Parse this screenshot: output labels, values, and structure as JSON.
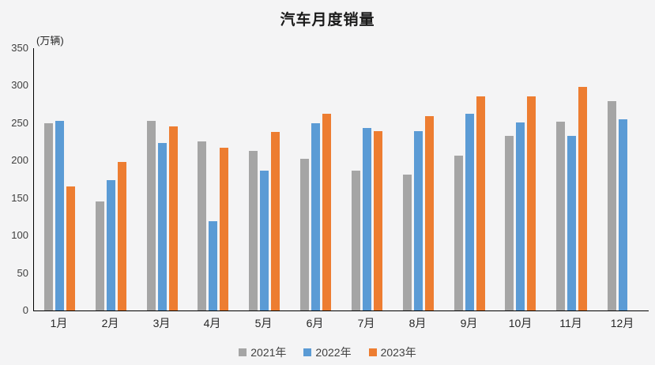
{
  "title": "汽车月度销量",
  "unit_label": "(万辆)",
  "chart_data": {
    "type": "bar",
    "title": "汽车月度销量",
    "ylabel": "(万辆)",
    "xlabel": "",
    "categories": [
      "1月",
      "2月",
      "3月",
      "4月",
      "5月",
      "6月",
      "7月",
      "8月",
      "9月",
      "10月",
      "11月",
      "12月"
    ],
    "series": [
      {
        "name": "2021年",
        "color": "#a5a5a5",
        "values": [
          250,
          146,
          253,
          226,
          213,
          202,
          187,
          181,
          207,
          233,
          252,
          279
        ]
      },
      {
        "name": "2022年",
        "color": "#5b9bd5",
        "values": [
          253,
          174,
          224,
          119,
          187,
          250,
          243,
          239,
          262,
          251,
          233,
          255
        ]
      },
      {
        "name": "2023年",
        "color": "#ed7d31",
        "values": [
          165,
          198,
          246,
          217,
          238,
          262,
          239,
          259,
          286,
          286,
          298,
          null
        ]
      }
    ],
    "ylim": [
      0,
      350
    ],
    "ytick_step": 50,
    "grid": false,
    "legend_position": "bottom"
  }
}
